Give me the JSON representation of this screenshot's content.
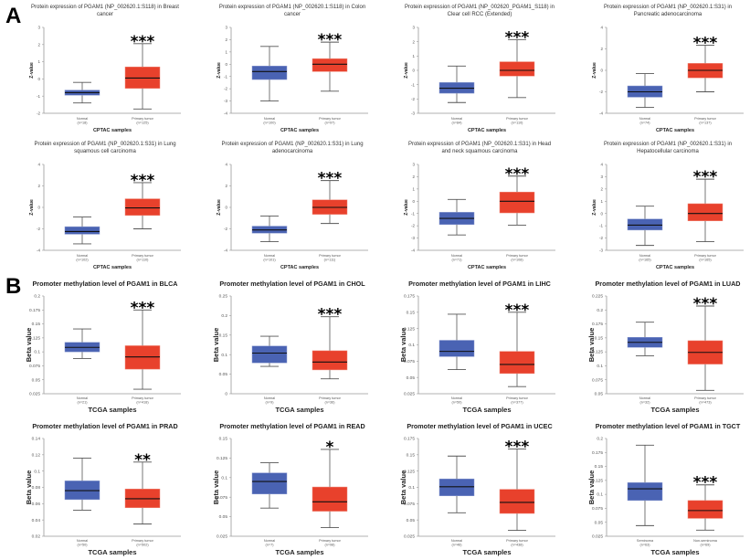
{
  "figure": {
    "panel_a_letter": "A",
    "panel_b_letter": "B",
    "colors": {
      "normal": "#4a63b3",
      "tumor": "#e8412c",
      "median": "#111111",
      "whisker": "#555555"
    }
  },
  "chart_data": [
    {
      "type": "box",
      "group": "A",
      "title": [
        "Protein expression of PGAM1 (NP_002620.1:S118) in Breast",
        "cancer"
      ],
      "ylabel": "Z-value",
      "xlabel": "CPTAC samples",
      "ylim": [
        -2,
        3
      ],
      "yticks": [
        -2,
        -1,
        0,
        1,
        2,
        3
      ],
      "significance": "***",
      "boxes": [
        {
          "label": "Normal",
          "n": "(n=18)",
          "stats": [
            -1.4,
            -0.95,
            -0.8,
            -0.65,
            -0.2
          ]
        },
        {
          "label": "Primary tumor",
          "n": "(n=125)",
          "stats": [
            -1.75,
            -0.55,
            0.05,
            0.7,
            2.05
          ]
        }
      ]
    },
    {
      "type": "box",
      "group": "A",
      "title": [
        "Protein expression of PGAM1 (NP_002620.1:S118) in Colon",
        "cancer"
      ],
      "ylabel": "Z-value",
      "xlabel": "CPTAC samples",
      "ylim": [
        -4,
        3
      ],
      "yticks": [
        -4,
        -3,
        -2,
        -1,
        0,
        1,
        2,
        3
      ],
      "significance": "***",
      "boxes": [
        {
          "label": "Normal",
          "n": "(n=100)",
          "stats": [
            -3.0,
            -1.25,
            -0.6,
            -0.15,
            1.45
          ]
        },
        {
          "label": "Primary tumor",
          "n": "(n=97)",
          "stats": [
            -2.2,
            -0.6,
            0.0,
            0.45,
            1.8
          ]
        }
      ]
    },
    {
      "type": "box",
      "group": "A",
      "title": [
        "Protein expression of PGAM1 (NP_002620_PGAM1_S118) in",
        "Clear cell RCC (Extended)"
      ],
      "ylabel": "Z-value",
      "xlabel": "CPTAC samples",
      "ylim": [
        -3,
        3
      ],
      "yticks": [
        -3,
        -2,
        -1,
        0,
        1,
        2,
        3
      ],
      "significance": "***",
      "boxes": [
        {
          "label": "Normal",
          "n": "(n=84)",
          "stats": [
            -2.25,
            -1.6,
            -1.25,
            -0.85,
            0.3
          ]
        },
        {
          "label": "Primary tumor",
          "n": "(n=110)",
          "stats": [
            -1.9,
            -0.4,
            0.0,
            0.6,
            2.15
          ]
        }
      ]
    },
    {
      "type": "box",
      "group": "A",
      "title": [
        "Protein expression of PGAM1 (NP_002620.1:S31) in",
        "Pancreatic adenocarcinoma"
      ],
      "ylabel": "Z-value",
      "xlabel": "CPTAC samples",
      "ylim": [
        -4,
        4
      ],
      "yticks": [
        -4,
        -2,
        0,
        2,
        4
      ],
      "significance": "***",
      "boxes": [
        {
          "label": "Normal",
          "n": "(n=74)",
          "stats": [
            -3.45,
            -2.5,
            -2.0,
            -1.45,
            -0.3
          ]
        },
        {
          "label": "Primary tumor",
          "n": "(n=137)",
          "stats": [
            -2.0,
            -0.7,
            0.0,
            0.65,
            2.35
          ]
        }
      ]
    },
    {
      "type": "box",
      "group": "A",
      "title": [
        "Protein expression of PGAM1 (NP_002620.1:S31) in Lung",
        "squamous cell carcinoma"
      ],
      "ylabel": "Z-value",
      "xlabel": "CPTAC samples",
      "ylim": [
        -4,
        4
      ],
      "yticks": [
        -4,
        -2,
        0,
        2,
        4
      ],
      "significance": "***",
      "boxes": [
        {
          "label": "Normal",
          "n": "(n=102)",
          "stats": [
            -3.4,
            -2.5,
            -2.25,
            -1.8,
            -0.9
          ]
        },
        {
          "label": "Primary tumor",
          "n": "(n=110)",
          "stats": [
            -2.0,
            -0.75,
            -0.05,
            0.8,
            2.3
          ]
        }
      ]
    },
    {
      "type": "box",
      "group": "A",
      "title": [
        "Protein expression of PGAM1 (NP_002620.1:S31) in Lung",
        "adenocarcinoma"
      ],
      "ylabel": "Z-value",
      "xlabel": "CPTAC samples",
      "ylim": [
        -4,
        4
      ],
      "yticks": [
        -4,
        -2,
        0,
        2,
        4
      ],
      "significance": "***",
      "boxes": [
        {
          "label": "Normal",
          "n": "(n=101)",
          "stats": [
            -3.2,
            -2.4,
            -2.1,
            -1.75,
            -0.8
          ]
        },
        {
          "label": "Primary tumor",
          "n": "(n=111)",
          "stats": [
            -1.5,
            -0.65,
            0.0,
            0.7,
            2.5
          ]
        }
      ]
    },
    {
      "type": "box",
      "group": "A",
      "title": [
        "Protein expression of PGAM1 (NP_002620.1:S31) in Head",
        "and neck squamous carcinoma"
      ],
      "ylabel": "Z-value",
      "xlabel": "CPTAC samples",
      "ylim": [
        -4,
        3
      ],
      "yticks": [
        -4,
        -3,
        -2,
        -1,
        0,
        1,
        2,
        3
      ],
      "significance": "***",
      "boxes": [
        {
          "label": "Normal",
          "n": "(n=71)",
          "stats": [
            -2.75,
            -1.9,
            -1.4,
            -0.9,
            0.15
          ]
        },
        {
          "label": "Primary tumor",
          "n": "(n=108)",
          "stats": [
            -1.95,
            -0.95,
            0.0,
            0.75,
            2.05
          ]
        }
      ]
    },
    {
      "type": "box",
      "group": "A",
      "title": [
        "Protein expression of PGAM1 (NP_002620.1:S31) in",
        "Hepatocellular carcinoma"
      ],
      "ylabel": "Z-value",
      "xlabel": "CPTAC samples",
      "ylim": [
        -3,
        4
      ],
      "yticks": [
        -3,
        -2,
        -1,
        0,
        1,
        2,
        3,
        4
      ],
      "significance": "***",
      "boxes": [
        {
          "label": "Normal",
          "n": "(n=165)",
          "stats": [
            -2.6,
            -1.35,
            -0.95,
            -0.45,
            0.6
          ]
        },
        {
          "label": "Primary tumor",
          "n": "(n=165)",
          "stats": [
            -2.3,
            -0.6,
            0.0,
            0.8,
            2.8
          ]
        }
      ]
    },
    {
      "type": "box",
      "group": "B",
      "title": [
        "Promoter methylation level of PGAM1 in BLCA"
      ],
      "ylabel": "Beta value",
      "xlabel": "TCGA samples",
      "ylim": [
        0.025,
        0.2
      ],
      "yticks": [
        "0.025",
        "0.05",
        "0.075",
        "0.1",
        "0.125",
        "0.15",
        "0.175",
        "0.2"
      ],
      "significance": "***",
      "boxes": [
        {
          "label": "Normal",
          "n": "(n=21)",
          "stats": [
            0.088,
            0.1,
            0.108,
            0.117,
            0.141
          ]
        },
        {
          "label": "Primary tumor",
          "n": "(n=418)",
          "stats": [
            0.033,
            0.069,
            0.091,
            0.111,
            0.175
          ]
        }
      ]
    },
    {
      "type": "box",
      "group": "B",
      "title": [
        "Promoter methylation level of PGAM1 in CHOL"
      ],
      "ylabel": "Beta value",
      "xlabel": "TCGA samples",
      "ylim": [
        0,
        0.25
      ],
      "yticks": [
        "0",
        "0.05",
        "0.1",
        "0.15",
        "0.2",
        "0.25"
      ],
      "significance": "***",
      "boxes": [
        {
          "label": "Normal",
          "n": "(n=9)",
          "stats": [
            0.07,
            0.079,
            0.104,
            0.122,
            0.147
          ]
        },
        {
          "label": "Primary tumor",
          "n": "(n=36)",
          "stats": [
            0.038,
            0.061,
            0.081,
            0.11,
            0.197
          ]
        }
      ]
    },
    {
      "type": "box",
      "group": "B",
      "title": [
        "Promoter methylation level of PGAM1 in LIHC"
      ],
      "ylabel": "Beta value",
      "xlabel": "TCGA samples",
      "ylim": [
        0.025,
        0.175
      ],
      "yticks": [
        "0.025",
        "0.05",
        "0.075",
        "0.1",
        "0.125",
        "0.15",
        "0.175"
      ],
      "significance": "***",
      "boxes": [
        {
          "label": "Normal",
          "n": "(n=50)",
          "stats": [
            0.062,
            0.082,
            0.09,
            0.107,
            0.147
          ]
        },
        {
          "label": "Primary tumor",
          "n": "(n=377)",
          "stats": [
            0.036,
            0.056,
            0.07,
            0.09,
            0.15
          ]
        }
      ]
    },
    {
      "type": "box",
      "group": "B",
      "title": [
        "Promoter methylation level of PGAM1 in LUAD"
      ],
      "ylabel": "Beta value",
      "xlabel": "TCGA samples",
      "ylim": [
        0.05,
        0.225
      ],
      "yticks": [
        "0.05",
        "0.075",
        "0.1",
        "0.125",
        "0.15",
        "0.175",
        "0.2",
        "0.225"
      ],
      "significance": "***",
      "boxes": [
        {
          "label": "Normal",
          "n": "(n=32)",
          "stats": [
            0.118,
            0.133,
            0.142,
            0.151,
            0.178
          ]
        },
        {
          "label": "Primary tumor",
          "n": "(n=473)",
          "stats": [
            0.056,
            0.103,
            0.124,
            0.145,
            0.207
          ]
        }
      ]
    },
    {
      "type": "box",
      "group": "B",
      "title": [
        "Promoter methylation level of PGAM1 in PRAD"
      ],
      "ylabel": "Beta value",
      "xlabel": "TCGA samples",
      "ylim": [
        0.02,
        0.14
      ],
      "yticks": [
        "0.02",
        "0.04",
        "0.06",
        "0.08",
        "0.1",
        "0.12",
        "0.14"
      ],
      "significance": "**",
      "boxes": [
        {
          "label": "Normal",
          "n": "(n=50)",
          "stats": [
            0.052,
            0.065,
            0.076,
            0.088,
            0.116
          ]
        },
        {
          "label": "Primary tumor",
          "n": "(n=502)",
          "stats": [
            0.035,
            0.055,
            0.066,
            0.078,
            0.111
          ]
        }
      ]
    },
    {
      "type": "box",
      "group": "B",
      "title": [
        "Promoter methylation level of PGAM1 in READ"
      ],
      "ylabel": "Beta value",
      "xlabel": "TCGA samples",
      "ylim": [
        0.025,
        0.15
      ],
      "yticks": [
        "0.025",
        "0.05",
        "0.075",
        "0.1",
        "0.125",
        "0.15"
      ],
      "significance": "*",
      "boxes": [
        {
          "label": "Normal",
          "n": "(n=7)",
          "stats": [
            0.061,
            0.079,
            0.095,
            0.106,
            0.119
          ]
        },
        {
          "label": "Primary tumor",
          "n": "(n=98)",
          "stats": [
            0.036,
            0.057,
            0.069,
            0.088,
            0.136
          ]
        }
      ]
    },
    {
      "type": "box",
      "group": "B",
      "title": [
        "Promoter methylation level of PGAM1 in UCEC"
      ],
      "ylabel": "Beta value",
      "xlabel": "TCGA samples",
      "ylim": [
        0.025,
        0.175
      ],
      "yticks": [
        "0.025",
        "0.05",
        "0.075",
        "0.1",
        "0.125",
        "0.15",
        "0.175"
      ],
      "significance": "***",
      "boxes": [
        {
          "label": "Normal",
          "n": "(n=46)",
          "stats": [
            0.061,
            0.087,
            0.101,
            0.113,
            0.148
          ]
        },
        {
          "label": "Primary tumor",
          "n": "(n=438)",
          "stats": [
            0.034,
            0.06,
            0.077,
            0.097,
            0.159
          ]
        }
      ]
    },
    {
      "type": "box",
      "group": "B",
      "title": [
        "Promoter methylation level of PGAM1 in TGCT"
      ],
      "ylabel": "Beta value",
      "xlabel": "TCGA samples",
      "ylim": [
        0.025,
        0.2
      ],
      "yticks": [
        "0.025",
        "0.05",
        "0.075",
        "0.1",
        "0.125",
        "0.15",
        "0.175",
        "0.2"
      ],
      "significance": "***",
      "boxes": [
        {
          "label": "Seminoma",
          "n": "(n=63)",
          "stats": [
            0.044,
            0.089,
            0.11,
            0.121,
            0.188
          ]
        },
        {
          "label": "Non-seminoma",
          "n": "(n=69)",
          "stats": [
            0.036,
            0.057,
            0.071,
            0.089,
            0.117
          ]
        }
      ]
    }
  ]
}
